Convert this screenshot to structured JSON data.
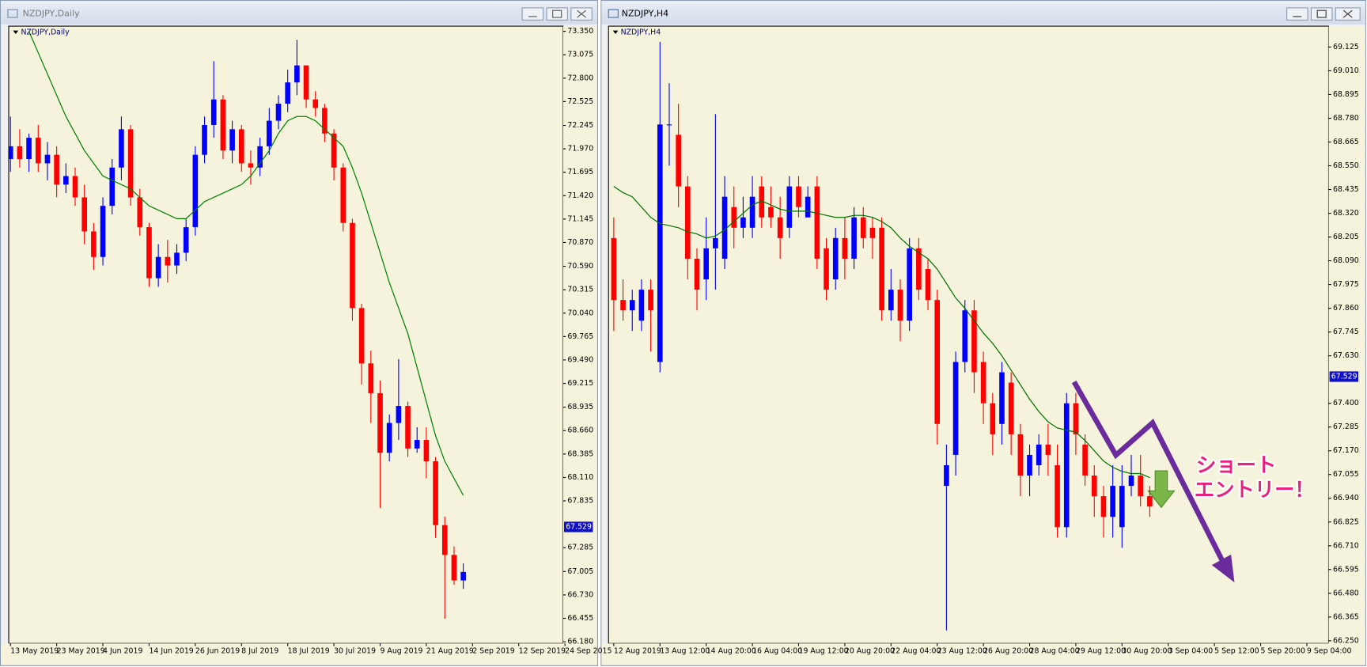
{
  "chart_data": [
    {
      "type": "candlestick",
      "title": "NZDJPY,Daily",
      "up_color": "#0000ff",
      "down_color": "#ff0000",
      "ma_color": "#008000",
      "xlim": [
        -0.19,
        59.81
      ],
      "ylim": [
        66.16,
        73.411
      ],
      "current_price": 67.529,
      "xticks": [
        {
          "value": 0,
          "label": "13 May 2019"
        },
        {
          "value": 5,
          "label": "23 May 2019"
        },
        {
          "value": 10,
          "label": "4 Jun 2019"
        },
        {
          "value": 15,
          "label": "14 Jun 2019"
        },
        {
          "value": 20,
          "label": "26 Jun 2019"
        },
        {
          "value": 25,
          "label": "8 Jul 2019"
        },
        {
          "value": 30,
          "label": "18 Jul 2019"
        },
        {
          "value": 35,
          "label": "30 Jul 2019"
        },
        {
          "value": 40,
          "label": "9 Aug 2019"
        },
        {
          "value": 45,
          "label": "21 Aug 2019"
        },
        {
          "value": 50,
          "label": "2 Sep 2019"
        },
        {
          "value": 55,
          "label": "12 Sep 2019"
        },
        {
          "value": 60,
          "label": "24 Sep 2015"
        }
      ],
      "yticks": [
        {
          "value": 73.35,
          "label": "73.350"
        },
        73.075,
        {
          "value": 72.8,
          "label": "72.800"
        },
        72.525,
        72.245,
        {
          "value": 71.97,
          "label": "71.970"
        },
        71.695,
        {
          "value": 71.42,
          "label": "71.420"
        },
        71.145,
        {
          "value": 70.87,
          "label": "70.870"
        },
        {
          "value": 70.59,
          "label": "70.590"
        },
        70.315,
        {
          "value": 70.04,
          "label": "70.040"
        },
        69.765,
        {
          "value": 69.49,
          "label": "69.490"
        },
        69.215,
        68.935,
        {
          "value": 68.66,
          "label": "68.660"
        },
        68.385,
        {
          "value": 68.11,
          "label": "68.110"
        },
        67.835,
        67.285,
        67.005,
        {
          "value": 66.73,
          "label": "66.730"
        },
        66.455,
        {
          "value": 66.18,
          "label": "66.180"
        }
      ],
      "open": [
        71.85,
        72.0,
        71.85,
        72.1,
        71.8,
        71.9,
        71.55,
        71.65,
        71.4,
        71.0,
        70.7,
        71.3,
        71.75,
        72.2,
        71.4,
        71.05,
        70.45,
        70.7,
        70.6,
        70.75,
        71.05,
        71.9,
        72.25,
        72.55,
        71.95,
        72.2,
        71.8,
        71.75,
        72.0,
        72.3,
        72.5,
        72.75,
        72.95,
        72.55,
        72.45,
        72.15,
        71.75,
        71.1,
        70.1,
        69.45,
        69.1,
        68.4,
        68.75,
        68.95,
        68.45,
        68.55,
        68.3,
        67.55,
        67.2,
        66.9
      ],
      "high": [
        72.35,
        72.2,
        72.15,
        72.25,
        72.05,
        72.0,
        71.8,
        71.75,
        71.55,
        71.1,
        71.4,
        71.85,
        72.35,
        72.25,
        71.5,
        71.1,
        70.85,
        70.9,
        70.85,
        71.15,
        72.0,
        72.35,
        73.0,
        72.6,
        72.3,
        72.25,
        71.95,
        72.1,
        72.45,
        72.6,
        72.9,
        73.25,
        72.95,
        72.65,
        72.5,
        72.2,
        71.8,
        71.15,
        70.15,
        69.6,
        69.25,
        68.85,
        69.5,
        69.0,
        68.7,
        68.7,
        68.35,
        67.65,
        67.3,
        67.1
      ],
      "low": [
        71.7,
        71.75,
        71.7,
        71.7,
        71.6,
        71.4,
        71.45,
        71.3,
        70.85,
        70.55,
        70.6,
        71.2,
        71.6,
        71.3,
        70.95,
        70.35,
        70.35,
        70.4,
        70.5,
        70.65,
        70.95,
        71.8,
        72.1,
        71.85,
        71.8,
        71.7,
        71.55,
        71.65,
        71.9,
        72.2,
        72.4,
        72.6,
        72.45,
        72.35,
        72.05,
        71.6,
        71.0,
        69.95,
        69.2,
        68.75,
        67.75,
        68.3,
        68.55,
        68.35,
        68.4,
        68.1,
        67.4,
        66.45,
        66.85,
        66.8
      ],
      "close": [
        72.0,
        71.85,
        72.1,
        71.8,
        71.9,
        71.55,
        71.65,
        71.4,
        71.0,
        70.7,
        71.3,
        71.75,
        72.2,
        71.4,
        71.05,
        70.45,
        70.7,
        70.6,
        70.75,
        71.05,
        71.9,
        72.25,
        72.55,
        71.95,
        72.2,
        71.8,
        71.75,
        72.0,
        72.3,
        72.5,
        72.75,
        72.95,
        72.55,
        72.45,
        72.15,
        71.75,
        71.1,
        70.1,
        69.45,
        69.1,
        68.4,
        68.75,
        68.95,
        68.45,
        68.55,
        68.3,
        67.55,
        67.2,
        66.9,
        67.0
      ],
      "ma": [
        null,
        null,
        73.35,
        73.1,
        72.85,
        72.6,
        72.35,
        72.15,
        71.95,
        71.8,
        71.65,
        71.6,
        71.55,
        71.5,
        71.4,
        71.3,
        71.25,
        71.2,
        71.15,
        71.15,
        71.25,
        71.35,
        71.4,
        71.45,
        71.5,
        71.55,
        71.65,
        71.8,
        71.95,
        72.15,
        72.3,
        72.35,
        72.35,
        72.3,
        72.2,
        72.1,
        72.0,
        71.75,
        71.45,
        71.1,
        70.75,
        70.4,
        70.1,
        69.8,
        69.4,
        69.0,
        68.6,
        68.3,
        68.1,
        67.9
      ]
    },
    {
      "type": "candlestick",
      "title": "NZDJPY,H4",
      "up_color": "#0000ff",
      "down_color": "#ff0000",
      "ma_color": "#007000",
      "xlim": [
        -0.57,
        77.36
      ],
      "ylim": [
        66.237,
        69.226
      ],
      "current_price": 67.529,
      "annotations": [
        "ショート",
        "エントリー！"
      ],
      "xticks": [
        {
          "value": 0,
          "label": "12 Aug 2019"
        },
        {
          "value": 5,
          "label": "13 Aug 12:00"
        },
        {
          "value": 10,
          "label": "14 Aug 20:00"
        },
        {
          "value": 15,
          "label": "16 Aug 04:00"
        },
        {
          "value": 20,
          "label": "19 Aug 12:00"
        },
        {
          "value": 25,
          "label": "20 Aug 20:00"
        },
        {
          "value": 30,
          "label": "22 Aug 04:00"
        },
        {
          "value": 35,
          "label": "23 Aug 12:00"
        },
        {
          "value": 40,
          "label": "26 Aug 20:00"
        },
        {
          "value": 45,
          "label": "28 Aug 04:00"
        },
        {
          "value": 50,
          "label": "29 Aug 12:00"
        },
        {
          "value": 55,
          "label": "30 Aug 20:00"
        },
        {
          "value": 60,
          "label": "3 Sep 04:00"
        },
        {
          "value": 65,
          "label": "5 Sep 12:00"
        },
        {
          "value": 70,
          "label": "5 Sep 20:00"
        },
        {
          "value": 75,
          "label": "9 Sep 04:00"
        }
      ],
      "yticks": [
        69.125,
        {
          "value": 69.01,
          "label": "69.010"
        },
        68.895,
        {
          "value": 68.78,
          "label": "68.780"
        },
        68.665,
        {
          "value": 68.55,
          "label": "68.550"
        },
        68.435,
        {
          "value": 68.32,
          "label": "68.320"
        },
        68.205,
        {
          "value": 68.09,
          "label": "68.090"
        },
        67.975,
        {
          "value": 67.86,
          "label": "67.860"
        },
        67.745,
        {
          "value": 67.63,
          "label": "67.630"
        },
        {
          "value": 67.4,
          "label": "67.400"
        },
        67.285,
        {
          "value": 67.17,
          "label": "67.170"
        },
        67.055,
        {
          "value": 66.94,
          "label": "66.940"
        },
        66.825,
        {
          "value": 66.71,
          "label": "66.710"
        },
        66.595,
        {
          "value": 66.48,
          "label": "66.480"
        },
        66.365,
        {
          "value": 66.25,
          "label": "66.250"
        }
      ],
      "open": [
        68.2,
        67.9,
        67.85,
        67.8,
        67.95,
        67.6,
        68.75,
        68.7,
        68.45,
        68.1,
        68.0,
        68.15,
        68.1,
        68.35,
        68.25,
        68.25,
        68.45,
        68.35,
        68.3,
        68.25,
        68.45,
        68.3,
        68.45,
        68.15,
        68.0,
        68.2,
        68.1,
        68.3,
        68.25,
        68.25,
        67.85,
        67.95,
        67.8,
        68.15,
        68.05,
        67.9,
        67.0,
        67.15,
        67.6,
        67.85,
        67.6,
        67.4,
        67.3,
        67.5,
        67.25,
        67.05,
        67.1,
        67.2,
        67.1,
        66.8,
        67.4,
        67.2,
        67.05,
        66.95,
        66.85,
        66.8,
        67.0,
        67.05,
        66.95
      ],
      "high": [
        68.3,
        68.0,
        67.95,
        68.0,
        68.0,
        69.15,
        68.95,
        68.85,
        68.5,
        68.15,
        68.3,
        68.8,
        68.5,
        68.45,
        68.4,
        68.5,
        68.5,
        68.45,
        68.4,
        68.5,
        68.5,
        68.45,
        68.5,
        68.2,
        68.25,
        68.3,
        68.35,
        68.35,
        68.3,
        68.3,
        68.05,
        68.0,
        68.2,
        68.2,
        68.1,
        67.95,
        67.2,
        67.65,
        67.9,
        67.9,
        67.65,
        67.45,
        67.6,
        67.55,
        67.3,
        67.2,
        67.25,
        67.3,
        67.2,
        67.45,
        67.45,
        67.25,
        67.1,
        67.0,
        67.1,
        67.1,
        67.15,
        67.15,
        67.0
      ],
      "low": [
        67.75,
        67.8,
        67.75,
        67.75,
        67.65,
        67.55,
        68.55,
        68.35,
        68.0,
        67.85,
        67.9,
        67.95,
        68.05,
        68.15,
        68.2,
        68.2,
        68.25,
        68.25,
        68.1,
        68.2,
        68.3,
        68.3,
        68.05,
        67.9,
        67.95,
        68.0,
        68.05,
        68.15,
        68.1,
        67.8,
        67.8,
        67.7,
        67.75,
        67.9,
        67.85,
        67.2,
        66.3,
        67.05,
        67.55,
        67.45,
        67.3,
        67.15,
        67.2,
        67.15,
        66.95,
        66.95,
        67.05,
        67.05,
        66.75,
        66.75,
        67.15,
        67.0,
        66.85,
        66.75,
        66.75,
        66.7,
        66.95,
        66.9,
        66.85
      ],
      "close": [
        67.9,
        67.85,
        67.9,
        67.95,
        67.85,
        68.75,
        68.75,
        68.45,
        68.1,
        67.95,
        68.15,
        68.2,
        68.4,
        68.25,
        68.3,
        68.4,
        68.3,
        68.3,
        68.2,
        68.45,
        68.35,
        68.4,
        68.1,
        67.95,
        68.2,
        68.1,
        68.3,
        68.2,
        68.2,
        67.85,
        67.95,
        67.8,
        68.15,
        67.95,
        67.9,
        67.3,
        67.1,
        67.6,
        67.85,
        67.55,
        67.4,
        67.25,
        67.55,
        67.25,
        67.05,
        67.15,
        67.2,
        67.15,
        66.8,
        67.4,
        67.25,
        67.05,
        66.95,
        66.85,
        67.0,
        67.0,
        67.05,
        66.95,
        66.9
      ],
      "ma": [
        68.45,
        68.42,
        68.4,
        68.35,
        68.3,
        68.27,
        68.26,
        68.25,
        68.23,
        68.22,
        68.2,
        68.21,
        68.24,
        68.28,
        68.32,
        68.36,
        68.38,
        68.36,
        68.34,
        68.33,
        68.33,
        68.33,
        68.32,
        68.31,
        68.3,
        68.3,
        68.31,
        68.31,
        68.3,
        68.28,
        68.25,
        68.2,
        68.16,
        68.13,
        68.1,
        68.05,
        67.98,
        67.91,
        67.86,
        67.8,
        67.74,
        67.69,
        67.63,
        67.56,
        67.49,
        67.42,
        67.36,
        67.31,
        67.28,
        67.27,
        67.26,
        67.22,
        67.17,
        67.12,
        67.09,
        67.07,
        67.06,
        67.06,
        67.04
      ]
    }
  ]
}
